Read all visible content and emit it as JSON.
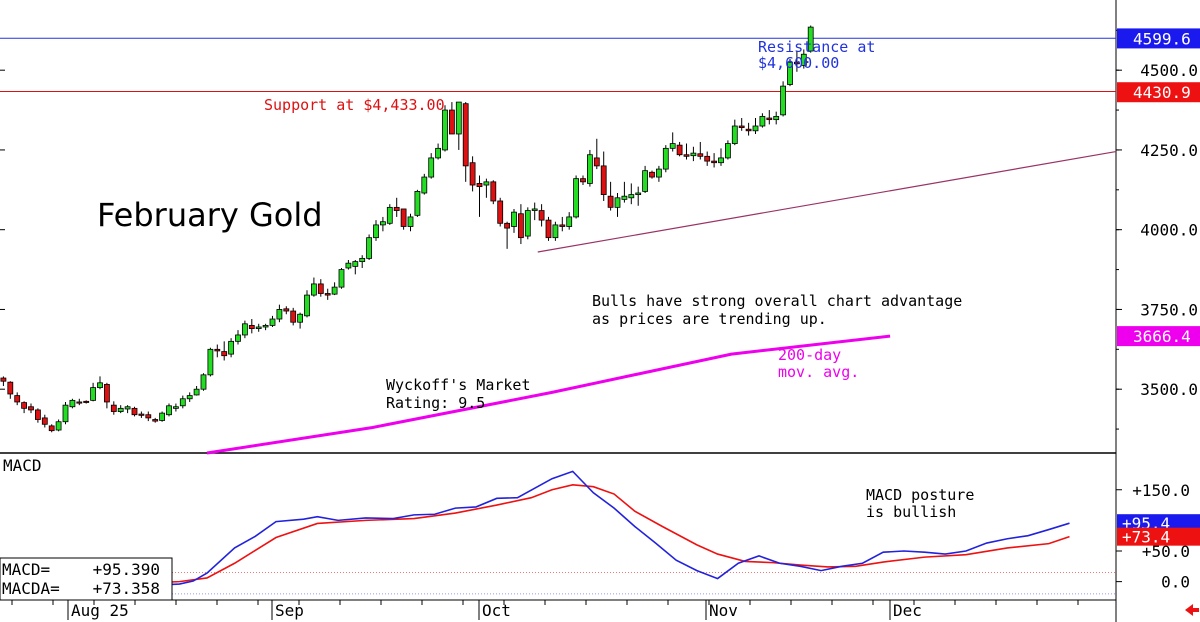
{
  "colors": {
    "up": "#22dd22",
    "down": "#dd1111",
    "resistance": "#2233dd",
    "support": "#dd1111",
    "ma200": "#ee00ee",
    "trendline": "#993366",
    "macd": "#2222dd",
    "macda": "#ee1111",
    "tag_blue": "#1a1aee",
    "tag_red": "#ee1111",
    "tag_magenta": "#ee00ee",
    "tag_black": "#111111"
  },
  "chart_data": {
    "type": "candlestick",
    "title": "February Gold",
    "ylim": [
      3300,
      4720
    ],
    "price_ticks": [
      3500.0,
      3750.0,
      4000.0,
      4250.0,
      4500.0
    ],
    "price_tick_labels": [
      "3500.0",
      "3750.0",
      "4000.0",
      "4250.0",
      "4500.0"
    ],
    "x_labels": [
      "Aug 25",
      "Sep",
      "Oct",
      "Nov",
      "Dec"
    ],
    "x_label_index": [
      6,
      27,
      48,
      71,
      89
    ],
    "ohlc": [
      [
        3535,
        3540,
        3510,
        3525
      ],
      [
        3522,
        3525,
        3470,
        3485
      ],
      [
        3480,
        3490,
        3450,
        3460
      ],
      [
        3458,
        3462,
        3425,
        3440
      ],
      [
        3445,
        3455,
        3425,
        3435
      ],
      [
        3435,
        3440,
        3395,
        3405
      ],
      [
        3410,
        3420,
        3380,
        3390
      ],
      [
        3385,
        3390,
        3365,
        3370
      ],
      [
        3372,
        3405,
        3368,
        3398
      ],
      [
        3398,
        3460,
        3390,
        3450
      ],
      [
        3445,
        3470,
        3440,
        3465
      ],
      [
        3460,
        3470,
        3450,
        3458
      ],
      [
        3462,
        3465,
        3455,
        3460
      ],
      [
        3465,
        3520,
        3462,
        3505
      ],
      [
        3505,
        3540,
        3500,
        3520
      ],
      [
        3515,
        3520,
        3440,
        3460
      ],
      [
        3450,
        3462,
        3420,
        3430
      ],
      [
        3430,
        3450,
        3425,
        3440
      ],
      [
        3438,
        3450,
        3425,
        3445
      ],
      [
        3440,
        3445,
        3415,
        3420
      ],
      [
        3422,
        3430,
        3410,
        3418
      ],
      [
        3420,
        3430,
        3400,
        3410
      ],
      [
        3405,
        3410,
        3395,
        3400
      ],
      [
        3402,
        3430,
        3398,
        3425
      ],
      [
        3420,
        3455,
        3415,
        3448
      ],
      [
        3440,
        3455,
        3430,
        3445
      ],
      [
        3448,
        3480,
        3440,
        3470
      ],
      [
        3470,
        3490,
        3460,
        3480
      ],
      [
        3482,
        3510,
        3480,
        3500
      ],
      [
        3500,
        3550,
        3495,
        3545
      ],
      [
        3545,
        3630,
        3540,
        3625
      ],
      [
        3625,
        3640,
        3600,
        3620
      ],
      [
        3618,
        3650,
        3590,
        3605
      ],
      [
        3610,
        3660,
        3600,
        3650
      ],
      [
        3650,
        3685,
        3640,
        3670
      ],
      [
        3670,
        3715,
        3660,
        3705
      ],
      [
        3700,
        3720,
        3675,
        3690
      ],
      [
        3690,
        3705,
        3680,
        3695
      ],
      [
        3695,
        3705,
        3685,
        3700
      ],
      [
        3700,
        3730,
        3695,
        3720
      ],
      [
        3720,
        3765,
        3710,
        3750
      ],
      [
        3752,
        3760,
        3735,
        3745
      ],
      [
        3745,
        3755,
        3700,
        3710
      ],
      [
        3710,
        3740,
        3690,
        3735
      ],
      [
        3730,
        3810,
        3725,
        3795
      ],
      [
        3795,
        3850,
        3790,
        3830
      ],
      [
        3830,
        3845,
        3790,
        3800
      ],
      [
        3800,
        3815,
        3780,
        3795
      ],
      [
        3798,
        3835,
        3795,
        3820
      ],
      [
        3820,
        3880,
        3815,
        3875
      ],
      [
        3880,
        3905,
        3875,
        3895
      ],
      [
        3885,
        3905,
        3860,
        3900
      ],
      [
        3900,
        3920,
        3880,
        3910
      ],
      [
        3910,
        3985,
        3905,
        3975
      ],
      [
        3975,
        4030,
        3965,
        4015
      ],
      [
        4015,
        4040,
        3995,
        4025
      ],
      [
        4020,
        4080,
        4015,
        4070
      ],
      [
        4070,
        4100,
        4040,
        4060
      ],
      [
        4065,
        4065,
        4000,
        4010
      ],
      [
        4010,
        4050,
        3995,
        4040
      ],
      [
        4045,
        4125,
        4040,
        4120
      ],
      [
        4115,
        4175,
        4110,
        4165
      ],
      [
        4165,
        4240,
        4160,
        4225
      ],
      [
        4225,
        4270,
        4220,
        4255
      ],
      [
        4250,
        4390,
        4245,
        4375
      ],
      [
        4375,
        4400,
        4300,
        4300
      ],
      [
        4300,
        4400,
        4250,
        4400
      ],
      [
        4395,
        4400,
        4150,
        4200
      ],
      [
        4210,
        4230,
        4120,
        4140
      ],
      [
        4145,
        4170,
        4040,
        4135
      ],
      [
        4140,
        4160,
        4100,
        4150
      ],
      [
        4150,
        4155,
        4080,
        4090
      ],
      [
        4090,
        4100,
        4010,
        4020
      ],
      [
        4020,
        4025,
        3940,
        4005
      ],
      [
        4010,
        4065,
        3990,
        4055
      ],
      [
        4050,
        4080,
        3955,
        3975
      ],
      [
        3980,
        4070,
        3970,
        4060
      ],
      [
        4060,
        4085,
        4030,
        4065
      ],
      [
        4060,
        4080,
        4010,
        4030
      ],
      [
        4030,
        4040,
        3965,
        3975
      ],
      [
        3975,
        4025,
        3965,
        4015
      ],
      [
        4015,
        4040,
        3995,
        4010
      ],
      [
        4010,
        4055,
        4000,
        4040
      ],
      [
        4040,
        4170,
        4035,
        4160
      ],
      [
        4160,
        4170,
        4140,
        4150
      ],
      [
        4145,
        4250,
        4135,
        4235
      ],
      [
        4225,
        4285,
        4190,
        4200
      ],
      [
        4200,
        4245,
        4090,
        4110
      ],
      [
        4105,
        4150,
        4060,
        4070
      ],
      [
        4070,
        4115,
        4040,
        4100
      ],
      [
        4095,
        4150,
        4085,
        4105
      ],
      [
        4100,
        4145,
        4080,
        4110
      ],
      [
        4110,
        4135,
        4075,
        4115
      ],
      [
        4120,
        4200,
        4115,
        4185
      ],
      [
        4180,
        4185,
        4160,
        4165
      ],
      [
        4165,
        4200,
        4150,
        4190
      ],
      [
        4190,
        4265,
        4180,
        4255
      ],
      [
        4255,
        4305,
        4245,
        4270
      ],
      [
        4265,
        4275,
        4230,
        4235
      ],
      [
        4235,
        4270,
        4220,
        4230
      ],
      [
        4232,
        4260,
        4215,
        4240
      ],
      [
        4238,
        4275,
        4220,
        4230
      ],
      [
        4230,
        4245,
        4200,
        4215
      ],
      [
        4215,
        4240,
        4195,
        4210
      ],
      [
        4210,
        4255,
        4200,
        4225
      ],
      [
        4225,
        4280,
        4220,
        4270
      ],
      [
        4270,
        4345,
        4265,
        4325
      ],
      [
        4325,
        4350,
        4310,
        4320
      ],
      [
        4315,
        4335,
        4295,
        4310
      ],
      [
        4310,
        4350,
        4300,
        4325
      ],
      [
        4325,
        4365,
        4320,
        4355
      ],
      [
        4350,
        4375,
        4330,
        4345
      ],
      [
        4345,
        4370,
        4330,
        4355
      ],
      [
        4360,
        4465,
        4355,
        4450
      ],
      [
        4455,
        4535,
        4450,
        4525
      ],
      [
        4525,
        4560,
        4495,
        4520
      ],
      [
        4515,
        4565,
        4505,
        4550
      ],
      [
        4560,
        4640,
        4555,
        4635
      ]
    ],
    "ma200": [
      [
        30,
        3300
      ],
      [
        54,
        3380
      ],
      [
        80,
        3490
      ],
      [
        106,
        3610
      ],
      [
        129,
        3666.4
      ]
    ],
    "trendline": [
      [
        77.5,
        3930
      ],
      [
        134,
        4245
      ]
    ],
    "resistance": 4600.0,
    "support": 4433.0,
    "macd_ylim": [
      -30,
      210
    ],
    "macd_ticks": [
      "+150.0",
      "+50.0",
      "0.0"
    ],
    "macd_tick_values": [
      150,
      50,
      0
    ],
    "macd": [
      [
        15,
        1
      ],
      [
        22,
        -6
      ],
      [
        26,
        -4
      ],
      [
        28,
        1
      ],
      [
        30,
        14
      ],
      [
        34,
        55
      ],
      [
        37,
        74
      ],
      [
        40,
        98
      ],
      [
        44,
        102
      ],
      [
        46,
        106
      ],
      [
        49,
        100
      ],
      [
        53,
        104
      ],
      [
        57,
        103
      ],
      [
        60,
        109
      ],
      [
        63,
        110
      ],
      [
        66,
        120
      ],
      [
        69,
        122
      ],
      [
        72,
        136
      ],
      [
        75,
        137
      ],
      [
        80,
        168
      ],
      [
        83,
        180
      ],
      [
        86,
        145
      ],
      [
        89,
        120
      ],
      [
        92,
        90
      ],
      [
        95,
        63
      ],
      [
        98,
        35
      ],
      [
        101,
        18
      ],
      [
        104,
        5
      ],
      [
        107,
        30
      ],
      [
        110,
        42
      ],
      [
        113,
        30
      ],
      [
        116,
        25
      ],
      [
        119,
        18
      ],
      [
        122,
        25
      ],
      [
        125,
        30
      ],
      [
        128,
        48
      ],
      [
        131,
        50
      ],
      [
        134,
        48
      ],
      [
        137,
        45
      ],
      [
        140,
        50
      ],
      [
        143,
        63
      ],
      [
        146,
        70
      ],
      [
        149,
        75
      ],
      [
        152,
        85
      ],
      [
        155,
        95.4
      ]
    ],
    "macda": [
      [
        15,
        3
      ],
      [
        22,
        -2
      ],
      [
        26,
        0
      ],
      [
        30,
        6
      ],
      [
        34,
        30
      ],
      [
        40,
        72
      ],
      [
        46,
        95
      ],
      [
        53,
        100
      ],
      [
        60,
        103
      ],
      [
        66,
        112
      ],
      [
        72,
        125
      ],
      [
        77,
        137
      ],
      [
        80,
        150
      ],
      [
        83,
        158
      ],
      [
        86,
        155
      ],
      [
        89,
        143
      ],
      [
        92,
        115
      ],
      [
        96,
        90
      ],
      [
        101,
        60
      ],
      [
        104,
        45
      ],
      [
        108,
        33
      ],
      [
        112,
        31
      ],
      [
        116,
        27
      ],
      [
        120,
        24
      ],
      [
        124,
        25
      ],
      [
        128,
        32
      ],
      [
        134,
        40
      ],
      [
        140,
        44
      ],
      [
        146,
        55
      ],
      [
        152,
        62
      ],
      [
        155,
        73.4
      ]
    ],
    "macd_readout": [
      {
        "label": "MACD=",
        "value": "+95.390"
      },
      {
        "label": "MACDA=",
        "value": "+73.358"
      }
    ]
  },
  "annotations": {
    "title": "February Gold",
    "resistance_line1": "Resistance at",
    "resistance_line2": "$4,600.00",
    "support": "Support at $4,433.00",
    "bulls_line1": "Bulls have strong overall chart advantage",
    "bulls_line2": "as prices are trending up.",
    "ma_line1": "200-day",
    "ma_line2": "mov. avg.",
    "wyckoff_line1": "Wyckoff's Market",
    "wyckoff_line2": "Rating: 9.5",
    "macd_title": "MACD",
    "macd_note_line1": "MACD posture",
    "macd_note_line2": "is bullish"
  },
  "price_tags": [
    {
      "text": "4599.6",
      "value": 4599.6,
      "color": "tag_blue"
    },
    {
      "text": "4430.9",
      "value": 4430.9,
      "color": "tag_red"
    },
    {
      "text": "3666.4",
      "value": 3666.4,
      "color": "tag_magenta"
    }
  ],
  "macd_tags": [
    {
      "text": "+95.4",
      "value": 95.4,
      "color": "tag_blue"
    },
    {
      "text": "+73.4",
      "value": 73.4,
      "color": "tag_red"
    }
  ]
}
